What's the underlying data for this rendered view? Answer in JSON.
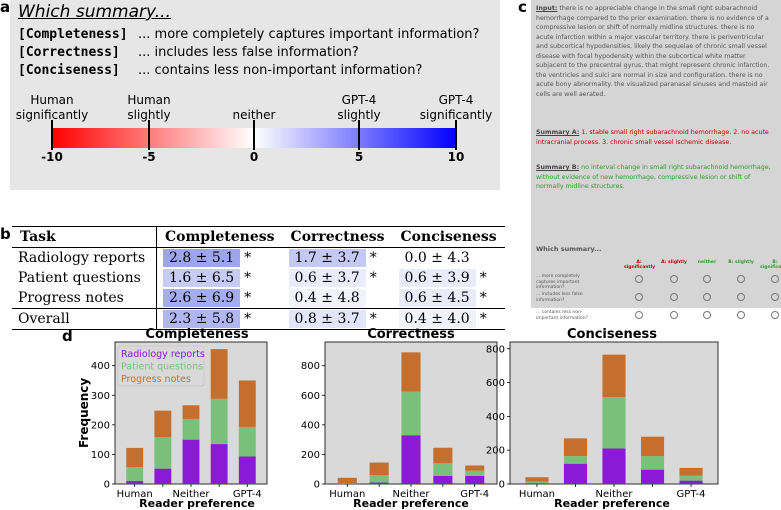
{
  "panels": {
    "a": "a",
    "b": "b",
    "c": "c",
    "d": "d"
  },
  "panel_a": {
    "title": "Which summary...",
    "criteria": [
      {
        "name": "[Completeness]",
        "desc": "... more completely captures important information?"
      },
      {
        "name": "[Correctness]",
        "desc": "... includes less false information?"
      },
      {
        "name": "[Conciseness]",
        "desc": "... contains less non-important information?"
      }
    ],
    "scale_labels": [
      {
        "text": "Human\nsignificantly",
        "value": -10
      },
      {
        "text": "Human\nslightly",
        "value": -5
      },
      {
        "text": "neither",
        "value": 0
      },
      {
        "text": "GPT-4\nslightly",
        "value": 5
      },
      {
        "text": "GPT-4\nsignificantly",
        "value": 10
      }
    ],
    "ticks": [
      "-10",
      "-5",
      "0",
      "5",
      "10"
    ],
    "colors": {
      "left": "#ff0000",
      "mid": "#ffffff",
      "right": "#0000ff"
    }
  },
  "panel_b": {
    "headers": [
      "Task",
      "Completeness",
      "Correctness",
      "Conciseness"
    ],
    "rows": [
      {
        "task": "Radiology reports",
        "cells": [
          {
            "text": "2.8 ± 5.1",
            "star": "*",
            "level": 2.8
          },
          {
            "text": "1.7 ± 3.7",
            "star": "*",
            "level": 1.7
          },
          {
            "text": "0.0 ± 4.3",
            "star": "",
            "level": 0.0
          }
        ]
      },
      {
        "task": "Patient questions",
        "cells": [
          {
            "text": "1.6 ± 6.5",
            "star": "*",
            "level": 1.6
          },
          {
            "text": "0.6 ± 3.7",
            "star": "*",
            "level": 0.6
          },
          {
            "text": "0.6 ± 3.9",
            "star": "*",
            "level": 0.6
          }
        ]
      },
      {
        "task": "Progress notes",
        "cells": [
          {
            "text": "2.6 ± 6.9",
            "star": "*",
            "level": 2.6
          },
          {
            "text": "0.4 ± 4.8",
            "star": "",
            "level": 0.4
          },
          {
            "text": "0.6 ± 4.5",
            "star": "*",
            "level": 0.6
          }
        ]
      },
      {
        "task": "Overall",
        "cells": [
          {
            "text": "2.3 ± 5.8",
            "star": "*",
            "level": 2.3
          },
          {
            "text": "0.8 ± 3.7",
            "star": "*",
            "level": 0.8
          },
          {
            "text": "0.4 ± 4.0",
            "star": "*",
            "level": 0.4
          }
        ]
      }
    ]
  },
  "panel_c": {
    "input_label": "Input:",
    "input_text": "there is no appreciable change in the small right subarachnoid hemorrhage compared to the prior examination. there is no evidence of a compressive lesion or shift of normally midline structures. there is no acute infarction within a major vascular territory. there is periventricular and subcortical hypodensities, likely the sequelae of chronic small vessel disease with focal hypodensity within the subcortical white matter subjacent to the precentral gyrus, that might represent chronic infarction. the ventricles and sulci are normal in size and configuration. there is no acute bony abnormality. the visualized paranasal sinuses and mastoid air cells are well aerated.",
    "summary_a_label": "Summary A:",
    "summary_a_text": "1. stable small right subarachnoid hemorrhage. 2. no acute intracranial process. 3. chronic small vessel ischemic disease.",
    "summary_b_label": "Summary B:",
    "summary_b_text": "no interval change in small right subarachnoid hemorrhage, without evidence of new hemorrhage, compressive lesion or shift of normally midline structures.",
    "question": "Which summary...",
    "columns": [
      "A: significantly",
      "A: slightly",
      "neither",
      "B: slightly",
      "B: significantly"
    ],
    "column_colors": [
      "#c00000",
      "#c00000",
      "#2c9c2c",
      "#2c9c2c",
      "#2c9c2c"
    ],
    "rows": [
      "... more completely captures important information?",
      "... includes less false information?",
      "... contains less non-important information?"
    ]
  },
  "chart_data": [
    {
      "type": "bar",
      "title": "Completeness",
      "xlabel": "Reader preference",
      "ylabel": "Frequency",
      "x_ticks": [
        "Human",
        "Neither",
        "GPT-4"
      ],
      "categories": [
        -2,
        -1,
        0,
        1,
        2
      ],
      "ylim": [
        0,
        480
      ],
      "yticks": [
        0,
        100,
        200,
        300,
        400
      ],
      "stacked": true,
      "legend": "top-left",
      "series": [
        {
          "name": "Radiology reports",
          "color": "#8a1ad6",
          "values": [
            10,
            52,
            150,
            135,
            93
          ]
        },
        {
          "name": "Patient questions",
          "color": "#79c17a",
          "values": [
            47,
            106,
            70,
            153,
            100
          ]
        },
        {
          "name": "Progress notes",
          "color": "#c46f2d",
          "values": [
            65,
            90,
            46,
            168,
            157
          ]
        }
      ]
    },
    {
      "type": "bar",
      "title": "Correctness",
      "xlabel": "Reader preference",
      "x_ticks": [
        "Human",
        "Neither",
        "GPT-4"
      ],
      "categories": [
        -2,
        -1,
        0,
        1,
        2
      ],
      "ylim": [
        0,
        960
      ],
      "yticks": [
        0,
        200,
        400,
        600,
        800
      ],
      "stacked": true,
      "series": [
        {
          "name": "Radiology reports",
          "color": "#8a1ad6",
          "values": [
            2,
            10,
            330,
            55,
            55
          ]
        },
        {
          "name": "Patient questions",
          "color": "#79c17a",
          "values": [
            5,
            50,
            295,
            85,
            35
          ]
        },
        {
          "name": "Progress notes",
          "color": "#c46f2d",
          "values": [
            35,
            85,
            265,
            105,
            35
          ]
        }
      ]
    },
    {
      "type": "bar",
      "title": "Conciseness",
      "xlabel": "Reader preference",
      "x_ticks": [
        "Human",
        "Neither",
        "GPT-4"
      ],
      "categories": [
        -2,
        -1,
        0,
        1,
        2
      ],
      "ylim": [
        0,
        840
      ],
      "yticks": [
        0,
        200,
        400,
        600,
        800
      ],
      "stacked": true,
      "series": [
        {
          "name": "Radiology reports",
          "color": "#8a1ad6",
          "values": [
            5,
            120,
            210,
            85,
            20
          ]
        },
        {
          "name": "Patient questions",
          "color": "#79c17a",
          "values": [
            10,
            45,
            305,
            80,
            30
          ]
        },
        {
          "name": "Progress notes",
          "color": "#c46f2d",
          "values": [
            25,
            105,
            250,
            115,
            45
          ]
        }
      ]
    }
  ]
}
